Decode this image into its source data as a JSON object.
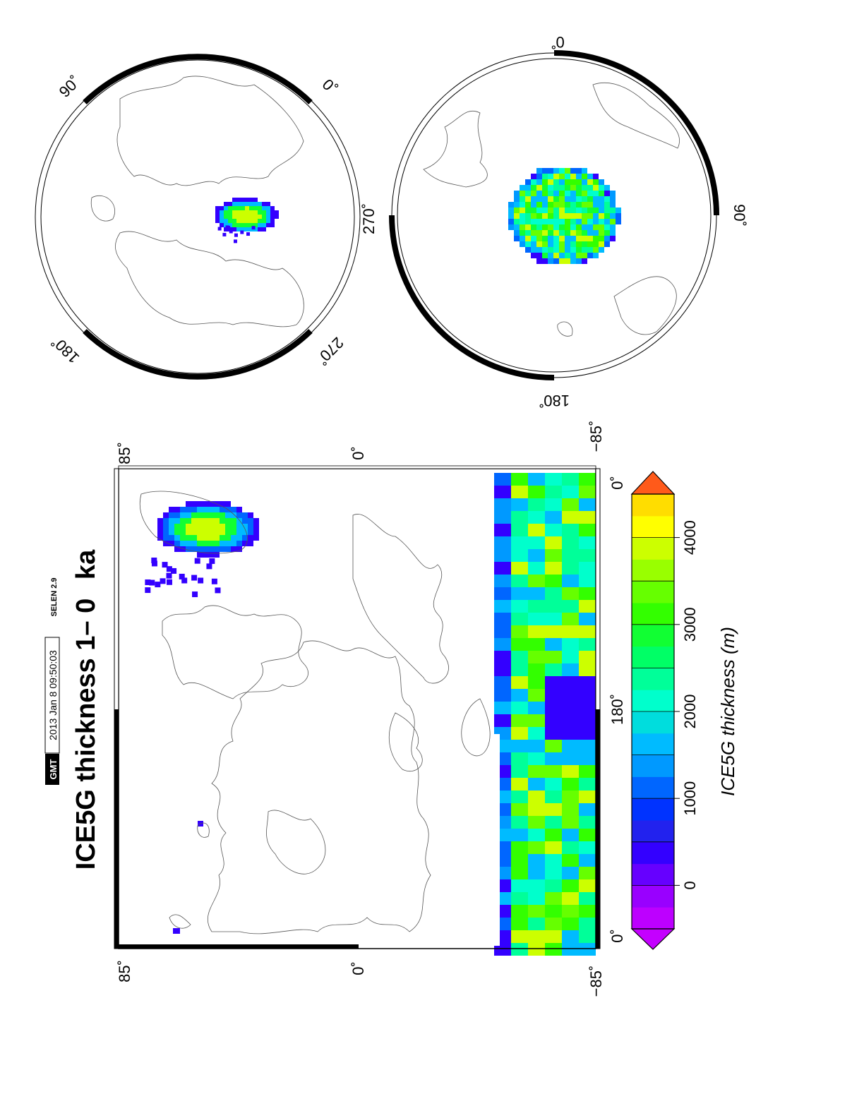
{
  "title": "ICE5G thickness  1– 0",
  "title_unit": "ka",
  "gmt_logo": "GMT",
  "timestamp": "2013 Jan  8 09:50:03",
  "software": "SELEN 2.9",
  "colorbar": {
    "label": "ICE5G thickness (m)",
    "ticks": [
      "0",
      "1000",
      "2000",
      "3000",
      "4000"
    ],
    "tick_values": [
      0,
      1000,
      2000,
      3000,
      4000
    ],
    "range": [
      -500,
      4500
    ],
    "step": 250,
    "palette": [
      "#bd00ff",
      "#9900ff",
      "#6600ff",
      "#3300ff",
      "#2222ee",
      "#0033ff",
      "#0066ff",
      "#0099ff",
      "#00bbff",
      "#00dddd",
      "#00ffcc",
      "#00ff99",
      "#00ff66",
      "#11ff33",
      "#33ff00",
      "#66ff00",
      "#99ff00",
      "#ccff00",
      "#ffff00",
      "#ffdd00",
      "#ffbb00",
      "#ff9900",
      "#ff7700",
      "#ff5500",
      "#ff3300",
      "#ff2200"
    ]
  },
  "main_map": {
    "lat_labels": [
      "85˚",
      "0˚",
      "−85˚"
    ],
    "lon_labels": [
      "0˚",
      "180˚",
      "0˚"
    ]
  },
  "north_polar_map": {
    "lon_labels": [
      "90˚",
      "0˚",
      "180˚",
      "270˚"
    ]
  },
  "south_polar_map": {
    "lon_labels": [
      "0˚",
      "270˚",
      "90˚",
      "180˚"
    ]
  }
}
